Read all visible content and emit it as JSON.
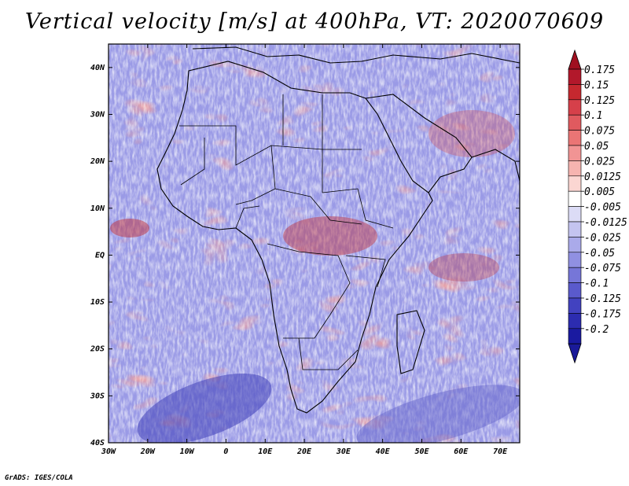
{
  "title": "Vertical velocity [m/s] at 400hPa, VT: 2020070609",
  "footer": "GrADS: IGES/COLA",
  "map": {
    "lat_ticks": [
      "40N",
      "30N",
      "20N",
      "10N",
      "EQ",
      "10S",
      "20S",
      "30S",
      "40S"
    ],
    "lon_ticks": [
      "30W",
      "20W",
      "10W",
      "0",
      "10E",
      "20E",
      "30E",
      "40E",
      "50E",
      "60E",
      "70E"
    ],
    "lat_range": [
      -40,
      45
    ],
    "lon_range": [
      -30,
      75
    ]
  },
  "colorbar": {
    "labels": [
      "0.175",
      "0.15",
      "0.125",
      "0.1",
      "0.075",
      "0.05",
      "0.025",
      "0.0125",
      "0.005",
      "-0.005",
      "-0.0125",
      "-0.025",
      "-0.05",
      "-0.075",
      "-0.1",
      "-0.125",
      "-0.175",
      "-0.2"
    ],
    "colors": [
      "#b2182b",
      "#c5282f",
      "#d6404a",
      "#e05a5f",
      "#ea7575",
      "#f19494",
      "#f6b4b0",
      "#fbd6d2",
      "#ffffff",
      "#dcdcf6",
      "#c4c4f0",
      "#aaaaea",
      "#9090e2",
      "#7676d8",
      "#5a5acc",
      "#4242c0",
      "#2c2cb0",
      "#1a1aa0"
    ],
    "low_color": "#1a1a99",
    "high_color": "#a01020"
  }
}
